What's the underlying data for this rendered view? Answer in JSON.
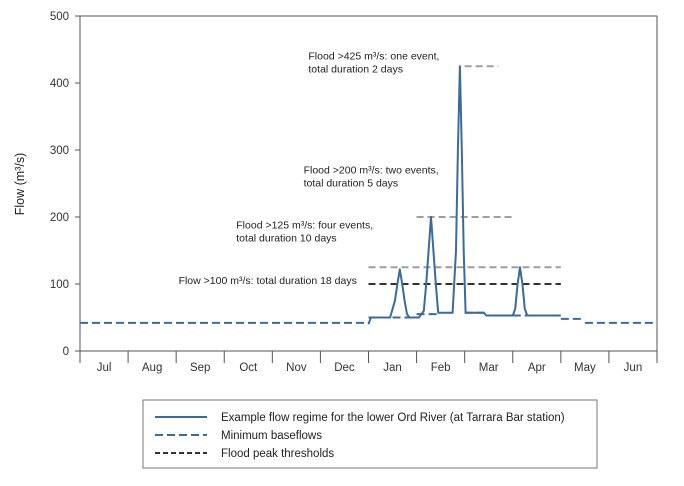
{
  "chart_data": {
    "type": "line",
    "ylabel": "Flow (m³/s)",
    "ylim": [
      0,
      500
    ],
    "yticks": [
      "0",
      "100",
      "200",
      "300",
      "400",
      "500"
    ],
    "categories": [
      "Jul",
      "Aug",
      "Sep",
      "Oct",
      "Nov",
      "Dec",
      "Jan",
      "Feb",
      "Mar",
      "Apr",
      "May",
      "Jun"
    ],
    "grid": false,
    "legend_position": "bottom",
    "legend": [
      {
        "label": "Example flow regime for the lower Ord River (at Tarrara Bar station)",
        "style": "solid"
      },
      {
        "label": "Minimum baseflows",
        "style": "dashed"
      },
      {
        "label": "Flood peak thresholds",
        "style": "dashed-dark"
      }
    ],
    "colors": {
      "flow": "#3d6a99",
      "baseflow": "#3d6a99",
      "threshold_dark": "#333333",
      "threshold_grey": "#9e9e9e",
      "axis": "#555555"
    },
    "series": [
      {
        "name": "Example flow regime for the lower Ord River (at Tarrara Bar station)",
        "x": [
          6.0,
          6.05,
          6.45,
          6.55,
          6.6,
          6.65,
          6.7,
          6.75,
          6.8,
          6.85,
          6.9,
          7.05,
          7.15,
          7.2,
          7.25,
          7.3,
          7.35,
          7.4,
          7.45,
          7.75,
          7.82,
          7.86,
          7.9,
          7.94,
          7.98,
          8.02,
          8.06,
          8.1,
          8.4,
          8.45,
          9.0,
          9.05,
          9.1,
          9.15,
          9.2,
          9.25,
          9.3,
          9.35,
          9.4,
          9.45,
          10.0
        ],
        "y": [
          40,
          50,
          50,
          75,
          100,
          122,
          100,
          75,
          55,
          50,
          50,
          50,
          60,
          100,
          150,
          200,
          150,
          100,
          57,
          57,
          150,
          300,
          425,
          300,
          150,
          57,
          57,
          57,
          57,
          53,
          53,
          63,
          100,
          125,
          100,
          63,
          53,
          53,
          53,
          53,
          53
        ]
      },
      {
        "name": "Minimum baseflows",
        "segments": [
          {
            "x": [
              0,
              6.0
            ],
            "y": [
              42,
              42
            ]
          },
          {
            "x": [
              6.0,
              6.5
            ],
            "y": [
              50,
              50
            ]
          },
          {
            "x": [
              6.5,
              7.0
            ],
            "y": [
              50,
              50
            ]
          },
          {
            "x": [
              7.0,
              7.5
            ],
            "y": [
              55,
              55
            ]
          },
          {
            "x": [
              8.0,
              8.5
            ],
            "y": [
              57,
              57
            ]
          },
          {
            "x": [
              9.0,
              9.5
            ],
            "y": [
              53,
              53
            ]
          },
          {
            "x": [
              10.0,
              10.5
            ],
            "y": [
              48,
              48
            ]
          },
          {
            "x": [
              10.5,
              12.0
            ],
            "y": [
              42,
              42
            ]
          }
        ]
      },
      {
        "name": "Flood peak thresholds",
        "segments": [
          {
            "x": [
              6.0,
              10.0
            ],
            "y": [
              100,
              100
            ],
            "color": "dark"
          },
          {
            "x": [
              6.0,
              10.0
            ],
            "y": [
              125,
              125
            ],
            "color": "grey"
          },
          {
            "x": [
              7.0,
              9.0
            ],
            "y": [
              200,
              200
            ],
            "color": "grey"
          },
          {
            "x": [
              8.0,
              8.7
            ],
            "y": [
              425,
              425
            ],
            "color": "grey"
          }
        ]
      }
    ],
    "annotations": [
      {
        "lines": [
          "Flood >425 m³/s: one event,",
          "total duration 2 days"
        ],
        "x": 4.75,
        "y": 435
      },
      {
        "lines": [
          "Flood >200 m³/s: two events,",
          "total duration 5 days"
        ],
        "x": 4.65,
        "y": 265
      },
      {
        "lines": [
          "Flood >125 m³/s: four events,",
          "total duration 10 days"
        ],
        "x": 3.25,
        "y": 183
      },
      {
        "lines": [
          "Flow >100 m³/s: total duration 18 days"
        ],
        "x": 2.05,
        "y": 100
      }
    ]
  }
}
